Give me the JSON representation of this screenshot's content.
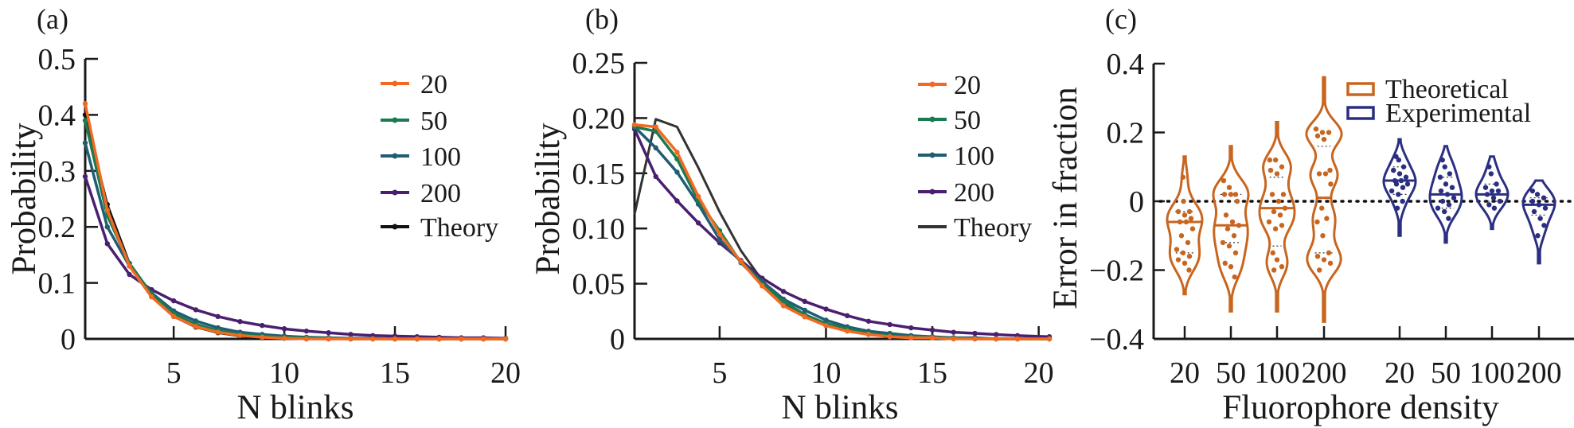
{
  "chart_data": [
    {
      "panel_label": "(a)",
      "type": "line",
      "xlabel": "N blinks",
      "ylabel": "Probability",
      "xlim": [
        1,
        20
      ],
      "ylim": [
        0,
        0.5
      ],
      "xticks": [
        5,
        10,
        15,
        20
      ],
      "xtick_labels": [
        "5",
        "10",
        "15",
        "20"
      ],
      "yticks": [
        0,
        0.1,
        0.2,
        0.3,
        0.4,
        0.5
      ],
      "ytick_labels": [
        "0",
        "0.1",
        "0.2",
        "0.3",
        "0.4",
        "0.5"
      ],
      "legend_position": "top-right",
      "x": [
        1,
        2,
        3,
        4,
        5,
        6,
        7,
        8,
        9,
        10,
        11,
        12,
        13,
        14,
        15,
        16,
        17,
        18,
        19,
        20
      ],
      "series": [
        {
          "name": "20",
          "color": "#f26a21",
          "values": [
            0.42,
            0.23,
            0.13,
            0.075,
            0.04,
            0.022,
            0.012,
            0.006,
            0.003,
            0.001,
            0,
            0,
            0,
            0,
            0,
            0,
            0,
            0,
            0,
            0
          ]
        },
        {
          "name": "50",
          "color": "#1b7a50",
          "values": [
            0.39,
            0.22,
            0.135,
            0.08,
            0.045,
            0.026,
            0.015,
            0.008,
            0.005,
            0.003,
            0.002,
            0.001,
            0,
            0,
            0,
            0,
            0,
            0,
            0,
            0
          ]
        },
        {
          "name": "100",
          "color": "#1f5d72",
          "values": [
            0.35,
            0.2,
            0.13,
            0.082,
            0.05,
            0.032,
            0.02,
            0.012,
            0.008,
            0.005,
            0.003,
            0.002,
            0.001,
            0.001,
            0,
            0,
            0,
            0,
            0,
            0
          ]
        },
        {
          "name": "200",
          "color": "#4b1f6f",
          "values": [
            0.29,
            0.17,
            0.115,
            0.088,
            0.068,
            0.052,
            0.04,
            0.031,
            0.024,
            0.018,
            0.014,
            0.011,
            0.008,
            0.006,
            0.005,
            0.004,
            0.003,
            0.002,
            0.002,
            0.001
          ]
        },
        {
          "name": "Theory",
          "color": "#111111",
          "values": [
            0.4,
            0.24,
            0.135,
            0.077,
            0.04,
            0.021,
            0.011,
            0.005,
            0.002,
            0.001,
            0,
            0,
            0,
            0,
            0,
            0,
            0,
            0,
            0,
            0
          ]
        }
      ]
    },
    {
      "panel_label": "(b)",
      "type": "line",
      "xlabel": "N blinks",
      "ylabel": "Probability",
      "xlim": [
        1,
        20.5
      ],
      "ylim": [
        0,
        0.25
      ],
      "xticks": [
        5,
        10,
        15,
        20
      ],
      "xtick_labels": [
        "5",
        "10",
        "15",
        "20"
      ],
      "yticks": [
        0,
        0.05,
        0.1,
        0.15,
        0.2,
        0.25
      ],
      "ytick_labels": [
        "0",
        "0.05",
        "0.10",
        "0.15",
        "0.20",
        "0.25"
      ],
      "legend_position": "top-right",
      "x": [
        1,
        2,
        3,
        4,
        5,
        6,
        7,
        8,
        9,
        10,
        11,
        12,
        13,
        14,
        15,
        16,
        17,
        18,
        19,
        20.5
      ],
      "series": [
        {
          "name": "20",
          "color": "#f26a21",
          "values": [
            0.194,
            0.192,
            0.169,
            0.129,
            0.095,
            0.07,
            0.048,
            0.03,
            0.02,
            0.012,
            0.007,
            0.004,
            0.002,
            0.001,
            0.001,
            0,
            0,
            0,
            0,
            0
          ]
        },
        {
          "name": "50",
          "color": "#1b7a50",
          "values": [
            0.192,
            0.188,
            0.163,
            0.125,
            0.098,
            0.069,
            0.05,
            0.034,
            0.022,
            0.014,
            0.009,
            0.005,
            0.003,
            0.002,
            0.001,
            0.001,
            0,
            0,
            0,
            0
          ]
        },
        {
          "name": "100",
          "color": "#1f5d72",
          "values": [
            0.192,
            0.173,
            0.151,
            0.122,
            0.09,
            0.07,
            0.052,
            0.036,
            0.026,
            0.017,
            0.011,
            0.007,
            0.005,
            0.003,
            0.002,
            0.001,
            0.001,
            0,
            0,
            0
          ]
        },
        {
          "name": "200",
          "color": "#4b1f6f",
          "values": [
            0.19,
            0.147,
            0.125,
            0.105,
            0.087,
            0.071,
            0.055,
            0.043,
            0.034,
            0.027,
            0.021,
            0.016,
            0.013,
            0.01,
            0.008,
            0.006,
            0.005,
            0.004,
            0.003,
            0.002
          ]
        },
        {
          "name": "Theory",
          "color": "#333333",
          "values": [
            0.113,
            0.199,
            0.192,
            0.155,
            0.115,
            0.08,
            0.053,
            0.033,
            0.02,
            0.012,
            0.007,
            0.004,
            0.002,
            0.001,
            0.001,
            0,
            0,
            0,
            0,
            0
          ]
        }
      ]
    },
    {
      "panel_label": "(c)",
      "type": "violin",
      "xlabel": "Fluorophore density",
      "ylabel": "Error in fraction",
      "ylim": [
        -0.4,
        0.4
      ],
      "yticks": [
        -0.4,
        -0.2,
        0,
        0.2,
        0.4
      ],
      "ytick_labels": [
        "−0.4",
        "−0.2",
        "0",
        "0.2",
        "0.4"
      ],
      "reference_line": 0,
      "legend_position": "top-right",
      "groups": [
        {
          "name": "Theoretical",
          "color": "#c8651f",
          "categories": [
            "20",
            "50",
            "100",
            "200"
          ],
          "violins": [
            {
              "range": [
                -0.27,
                0.13
              ],
              "median": -0.06,
              "q1": -0.15,
              "q3": -0.03,
              "points": [
                0.07,
                0.0,
                -0.03,
                -0.03,
                -0.04,
                -0.05,
                -0.06,
                -0.06,
                -0.08,
                -0.1,
                -0.12,
                -0.14,
                -0.15,
                -0.16,
                -0.17,
                -0.18,
                -0.2
              ]
            },
            {
              "range": [
                -0.32,
                0.16
              ],
              "median": -0.07,
              "q1": -0.12,
              "q3": 0.02,
              "points": [
                0.06,
                0.04,
                0.02,
                0.02,
                0.02,
                0.0,
                -0.04,
                -0.06,
                -0.07,
                -0.08,
                -0.1,
                -0.12,
                -0.13,
                -0.15,
                -0.18,
                -0.19,
                -0.22
              ]
            },
            {
              "range": [
                -0.32,
                0.23
              ],
              "median": -0.02,
              "q1": -0.13,
              "q3": 0.07,
              "points": [
                0.12,
                0.12,
                0.1,
                0.09,
                0.08,
                0.02,
                0.02,
                0.0,
                -0.02,
                -0.03,
                -0.04,
                -0.06,
                -0.08,
                -0.07,
                -0.15,
                -0.17,
                -0.19,
                -0.2
              ]
            },
            {
              "range": [
                -0.35,
                0.36
              ],
              "median": 0.01,
              "q1": -0.15,
              "q3": 0.16,
              "points": [
                0.21,
                0.2,
                0.2,
                0.19,
                0.18,
                0.09,
                0.08,
                0.08,
                0.05,
                -0.02,
                -0.05,
                -0.06,
                -0.1,
                -0.15,
                -0.16,
                -0.17,
                -0.18,
                -0.2
              ]
            }
          ]
        },
        {
          "name": "Experimental",
          "color": "#2b2f82",
          "categories": [
            "20",
            "50",
            "100",
            "200"
          ],
          "violins": [
            {
              "range": [
                -0.1,
                0.18
              ],
              "median": 0.06,
              "q1": 0.02,
              "q3": 0.1,
              "points": [
                0.13,
                0.12,
                0.1,
                0.09,
                0.08,
                0.07,
                0.06,
                0.06,
                0.05,
                0.05,
                0.04,
                0.03,
                0.02,
                0.0,
                -0.02
              ]
            },
            {
              "range": [
                -0.12,
                0.16
              ],
              "median": 0.02,
              "q1": -0.02,
              "q3": 0.07,
              "points": [
                0.12,
                0.1,
                0.08,
                0.07,
                0.05,
                0.04,
                0.03,
                0.02,
                0.01,
                0.0,
                -0.01,
                -0.02,
                -0.03,
                -0.05
              ]
            },
            {
              "range": [
                -0.08,
                0.13
              ],
              "median": 0.02,
              "q1": 0.0,
              "q3": 0.05,
              "points": [
                0.1,
                0.08,
                0.05,
                0.04,
                0.03,
                0.03,
                0.02,
                0.01,
                0.0,
                -0.01,
                -0.02
              ]
            },
            {
              "range": [
                -0.18,
                0.06
              ],
              "median": -0.01,
              "q1": -0.04,
              "q3": 0.01,
              "points": [
                0.03,
                0.02,
                0.01,
                0.0,
                -0.01,
                -0.02,
                -0.03,
                -0.05,
                -0.07,
                -0.1
              ]
            }
          ]
        }
      ]
    }
  ]
}
